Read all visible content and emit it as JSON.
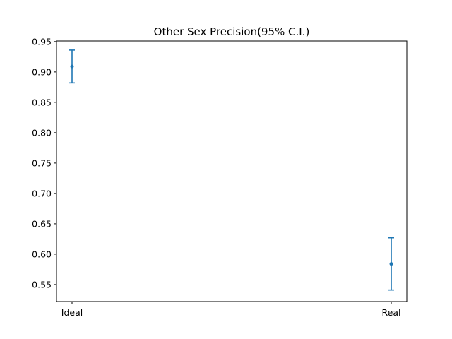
{
  "chart_data": {
    "type": "scatter",
    "title": "Other Sex Precision(95% C.I.)",
    "xlabel": "",
    "ylabel": "",
    "categories": [
      "Ideal",
      "Real"
    ],
    "values": [
      0.909,
      0.584
    ],
    "ci_lower": [
      0.882,
      0.541
    ],
    "ci_upper": [
      0.936,
      0.627
    ],
    "ylim": [
      0.522,
      0.951
    ],
    "yticks": [
      0.55,
      0.6,
      0.65,
      0.7,
      0.75,
      0.8,
      0.85,
      0.9,
      0.95
    ],
    "ytick_labels": [
      "0.55",
      "0.60",
      "0.65",
      "0.70",
      "0.75",
      "0.80",
      "0.85",
      "0.90",
      "0.95"
    ],
    "grid": false,
    "color": "#1f77b4"
  }
}
